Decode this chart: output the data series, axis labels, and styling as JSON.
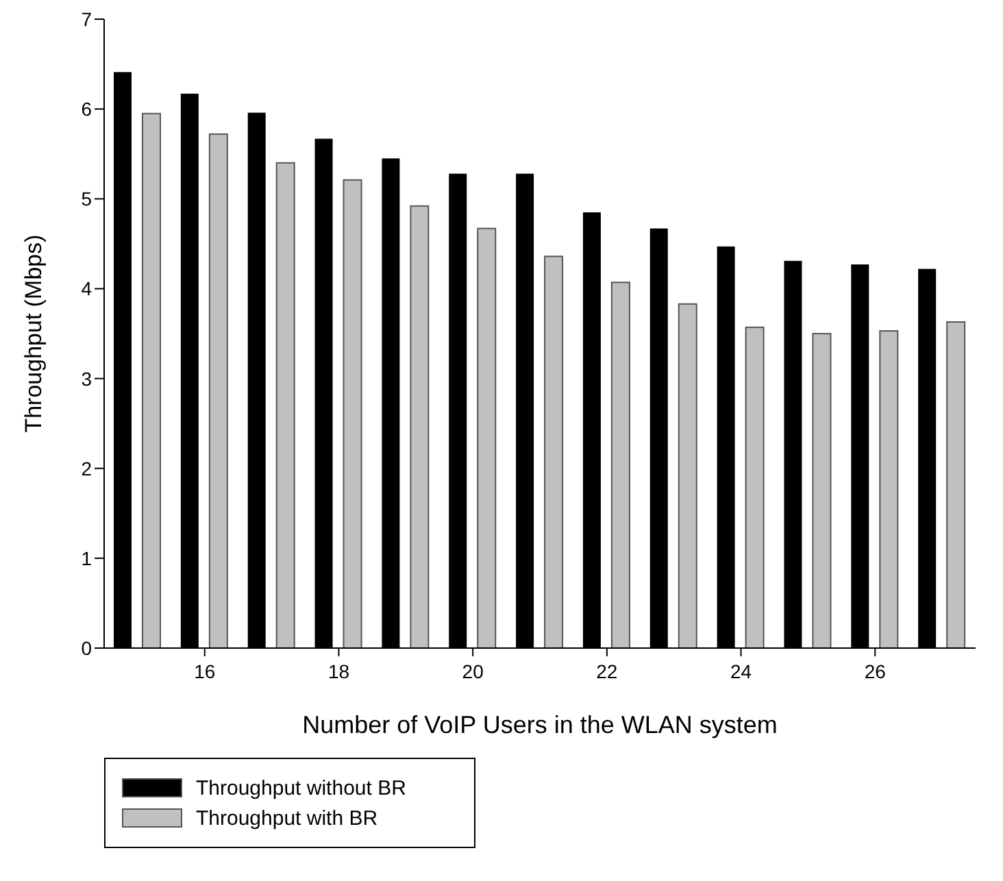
{
  "chart_data": {
    "type": "bar",
    "xlabel": "Number of VoIP Users in the WLAN system",
    "ylabel": "Throughput (Mbps)",
    "categories": [
      null,
      "16",
      null,
      "18",
      null,
      "20",
      null,
      "22",
      null,
      "24",
      null,
      "26",
      null
    ],
    "series": [
      {
        "name": "Throughput without BR",
        "color": "#000000",
        "values": [
          6.41,
          6.17,
          5.96,
          5.67,
          5.45,
          5.28,
          5.28,
          4.85,
          4.67,
          4.47,
          4.31,
          4.27,
          4.22
        ]
      },
      {
        "name": "Throughput with BR",
        "color": "#c0c0c0",
        "values": [
          5.95,
          5.72,
          5.4,
          5.21,
          4.92,
          4.67,
          4.36,
          4.07,
          3.83,
          3.57,
          3.5,
          3.53,
          3.63
        ]
      }
    ],
    "ylim": [
      0,
      7
    ],
    "yticks": [
      0,
      1,
      2,
      3,
      4,
      5,
      6,
      7
    ],
    "grid": false,
    "legend": "bottom left"
  }
}
